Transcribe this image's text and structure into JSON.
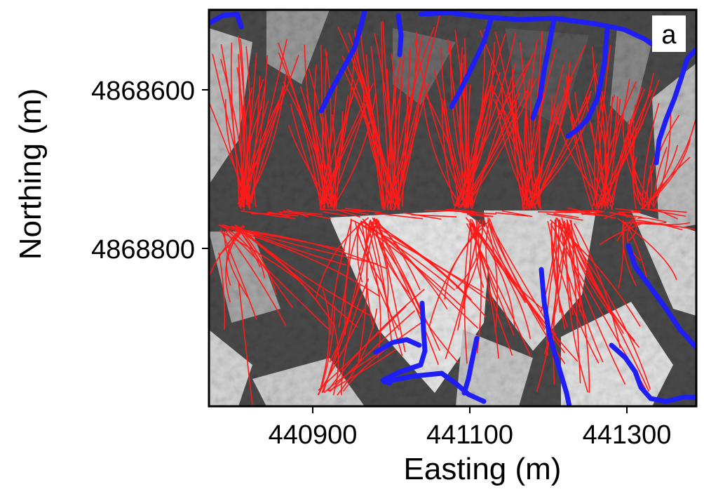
{
  "panel_label": "a",
  "axes": {
    "xlabel": "Easting (m)",
    "ylabel": "Northing (m)",
    "x_ticks": [
      "440900",
      "441100",
      "441300"
    ],
    "y_ticks": [
      "4868600",
      "4868800"
    ]
  },
  "map": {
    "background": "shaded relief (hillshade)",
    "colors": {
      "flow_paths": "#ff1a1a",
      "channels": "#1e1ef5",
      "frame": "#000000"
    }
  }
}
